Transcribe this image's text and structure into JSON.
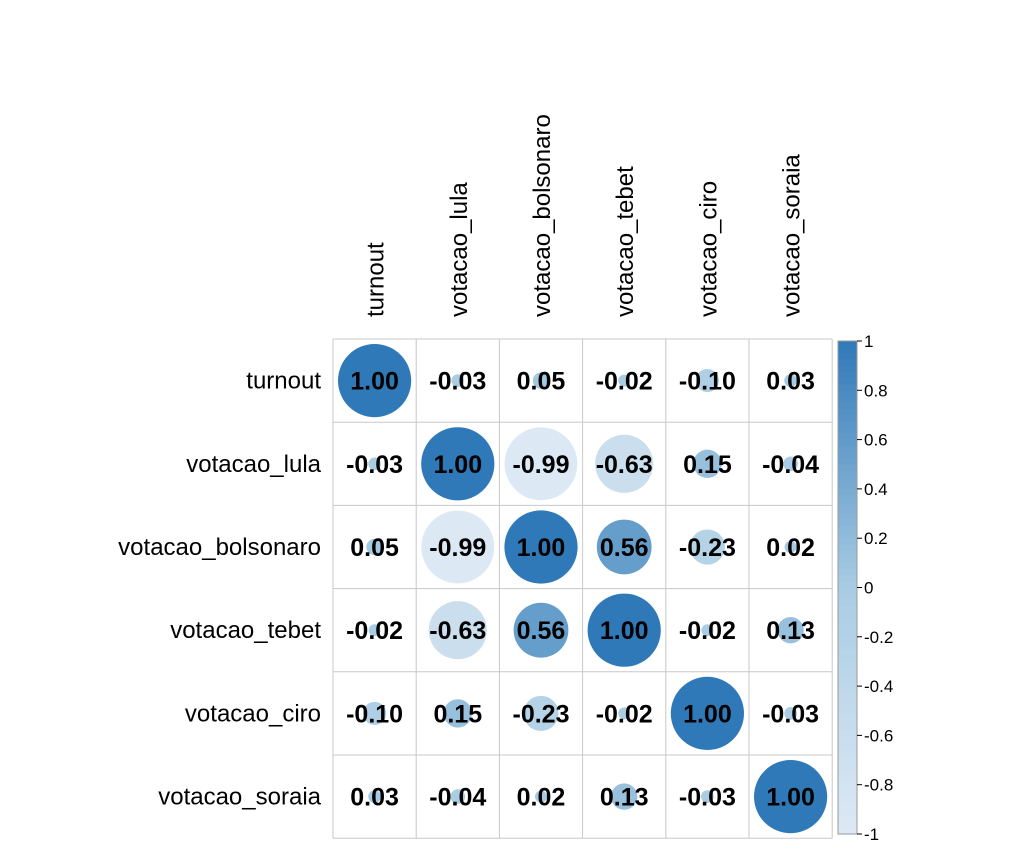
{
  "chart_data": {
    "type": "heatmap",
    "subtype": "correlation-circle",
    "variables": [
      "turnout",
      "votacao_lula",
      "votacao_bolsonaro",
      "votacao_tebet",
      "votacao_ciro",
      "votacao_soraia"
    ],
    "matrix": [
      [
        1.0,
        -0.03,
        0.05,
        -0.02,
        -0.1,
        0.03
      ],
      [
        -0.03,
        1.0,
        -0.99,
        -0.63,
        0.15,
        -0.04
      ],
      [
        0.05,
        -0.99,
        1.0,
        0.56,
        -0.23,
        0.02
      ],
      [
        -0.02,
        -0.63,
        0.56,
        1.0,
        -0.02,
        0.13
      ],
      [
        -0.1,
        0.15,
        -0.23,
        -0.02,
        1.0,
        -0.03
      ],
      [
        0.03,
        -0.04,
        0.02,
        0.13,
        -0.03,
        1.0
      ]
    ],
    "labels": [
      [
        "1.00",
        "-0.03",
        "0.05",
        "-0.02",
        "-0.10",
        "0.03"
      ],
      [
        "-0.03",
        "1.00",
        "-0.99",
        "-0.63",
        "0.15",
        "-0.04"
      ],
      [
        "0.05",
        "-0.99",
        "1.00",
        "0.56",
        "-0.23",
        "0.02"
      ],
      [
        "-0.02",
        "-0.63",
        "0.56",
        "1.00",
        "-0.02",
        "0.13"
      ],
      [
        "-0.10",
        "0.15",
        "-0.23",
        "-0.02",
        "1.00",
        "-0.03"
      ],
      [
        "0.03",
        "-0.04",
        "0.02",
        "0.13",
        "-0.03",
        "1.00"
      ]
    ],
    "colorbar": {
      "range": [
        -1,
        1
      ],
      "ticks": [
        "1",
        "0.8",
        "0.6",
        "0.4",
        "0.2",
        "0",
        "-0.2",
        "-0.4",
        "-0.6",
        "-0.8",
        "-1"
      ],
      "tick_values": [
        1,
        0.8,
        0.6,
        0.4,
        0.2,
        0,
        -0.2,
        -0.4,
        -0.6,
        -0.8,
        -1
      ],
      "color_low": "#dde9f5",
      "color_mid": "#a9cce3",
      "color_high": "#3079b8"
    },
    "grid": true,
    "legend": "right"
  }
}
